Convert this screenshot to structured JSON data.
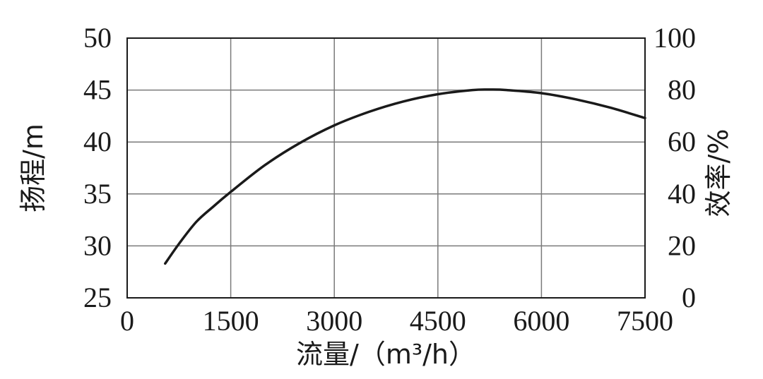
{
  "chart_data": {
    "type": "line",
    "xlabel": "流量/（m³/h）",
    "ylabel": "扬程/m",
    "y2label": "效率/%",
    "xlim": [
      0,
      7500
    ],
    "ylim": [
      25,
      50
    ],
    "y2lim": [
      0,
      100
    ],
    "x_ticks": [
      "0",
      "1500",
      "3000",
      "4500",
      "6000",
      "7500"
    ],
    "y_ticks": [
      "25",
      "30",
      "35",
      "40",
      "45",
      "50"
    ],
    "y2_ticks": [
      "0",
      "20",
      "40",
      "60",
      "80",
      "100"
    ],
    "grid": true,
    "series": [
      {
        "axis": "left",
        "color": "#1a1a1a",
        "x": [
          550,
          750,
          1000,
          1250,
          1500,
          2000,
          2500,
          3000,
          3500,
          4000,
          4500,
          5000,
          5250,
          5500,
          6000,
          6500,
          7000,
          7500
        ],
        "y": [
          28.3,
          30.2,
          32.3,
          33.8,
          35.2,
          37.8,
          39.9,
          41.6,
          42.9,
          43.9,
          44.6,
          45.0,
          45.05,
          45.0,
          44.7,
          44.1,
          43.3,
          42.3
        ]
      }
    ]
  }
}
